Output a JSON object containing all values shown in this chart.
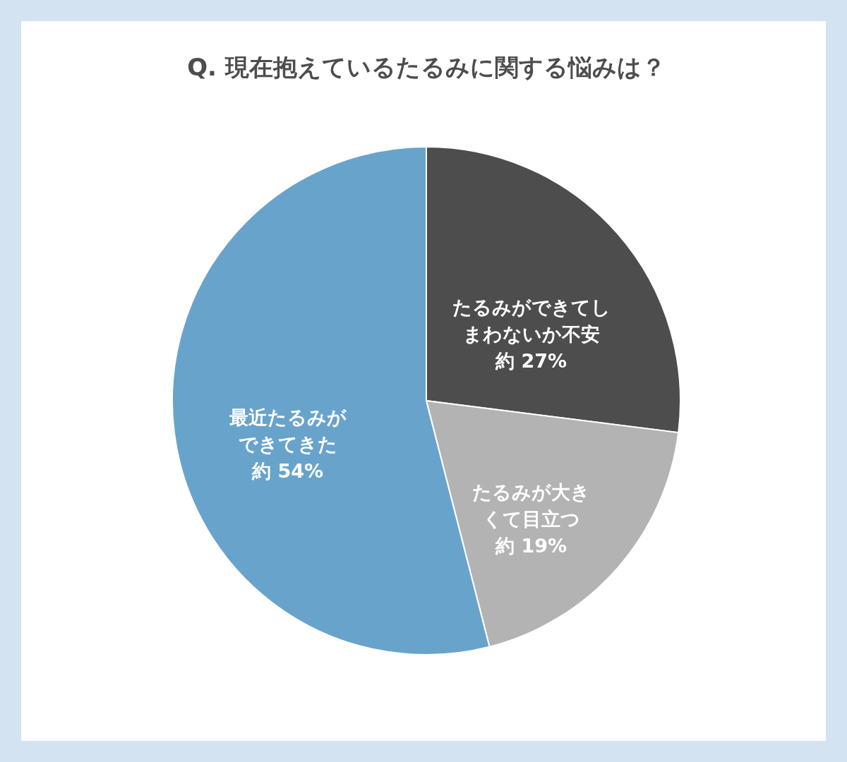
{
  "chart_data": {
    "type": "pie",
    "title": "Q. 現在抱えているたるみに関する悩みは？",
    "categories": [
      "たるみができてしまわないか不安",
      "たるみが大きくて目立つ",
      "最近たるみができてきた"
    ],
    "values": [
      27,
      19,
      54
    ],
    "colors": [
      "#4d4d4d",
      "#b3b3b3",
      "#68a3cc"
    ],
    "value_labels": [
      "約 27%",
      "約 19%",
      "約 54%"
    ]
  }
}
